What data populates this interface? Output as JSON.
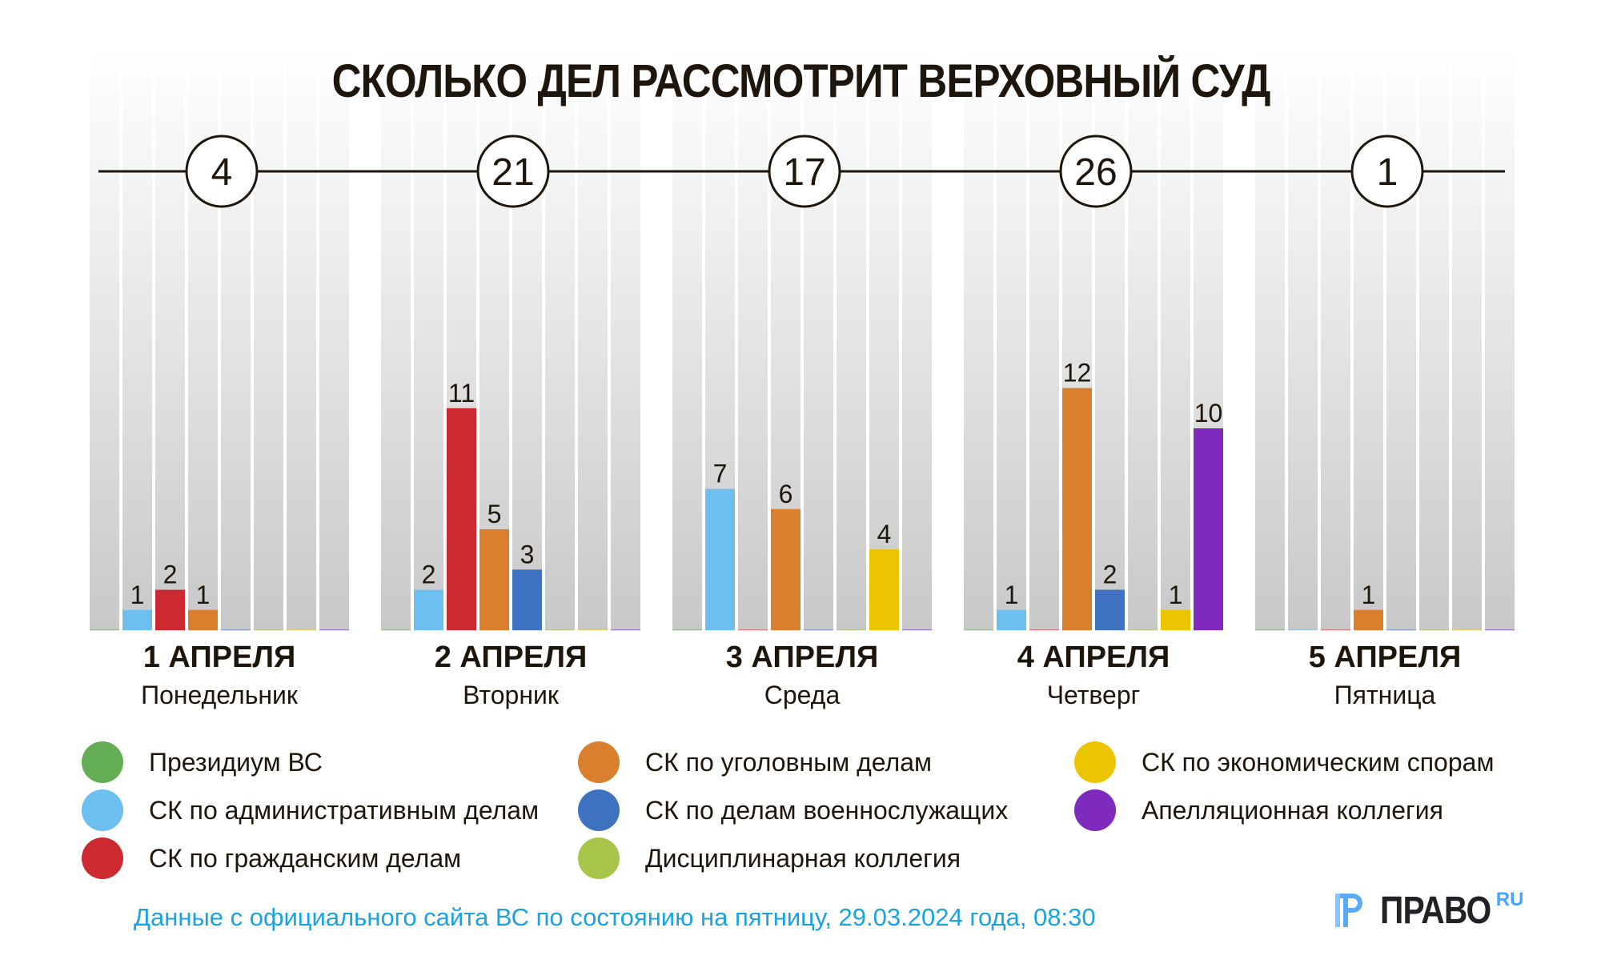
{
  "title": "СКОЛЬКО ДЕЛ РАССМОТРИТ ВЕРХОВНЫЙ СУД",
  "chart_data": {
    "type": "bar",
    "title": "СКОЛЬКО ДЕЛ РАССМОТРИТ ВЕРХОВНЫЙ СУД",
    "xlabel": "",
    "ylabel": "",
    "grid": false,
    "legend_position": "bottom",
    "categories": [
      {
        "date": "1 АПРЕЛЯ",
        "weekday": "Понедельник",
        "total": "4"
      },
      {
        "date": "2 АПРЕЛЯ",
        "weekday": "Вторник",
        "total": "21"
      },
      {
        "date": "3 АПРЕЛЯ",
        "weekday": "Среда",
        "total": "17"
      },
      {
        "date": "4 АПРЕЛЯ",
        "weekday": "Четверг",
        "total": "26"
      },
      {
        "date": "5 АПРЕЛЯ",
        "weekday": "Пятница",
        "total": "1"
      }
    ],
    "series": [
      {
        "name": "Президиум ВС",
        "color": "#63ae54",
        "values": [
          0,
          0,
          0,
          0,
          0
        ]
      },
      {
        "name": "СК по административным делам",
        "color": "#6cbfef",
        "values": [
          1,
          2,
          7,
          1,
          0
        ]
      },
      {
        "name": "СК по гражданским делам",
        "color": "#cc2a30",
        "values": [
          2,
          11,
          0,
          0,
          0
        ]
      },
      {
        "name": "СК по уголовным делам",
        "color": "#d97f2d",
        "values": [
          1,
          5,
          6,
          12,
          1
        ]
      },
      {
        "name": "СК по делам военнослужащих",
        "color": "#3f72c0",
        "values": [
          0,
          3,
          0,
          2,
          0
        ]
      },
      {
        "name": "Дисциплинарная коллегия",
        "color": "#a7c64a",
        "values": [
          0,
          0,
          0,
          0,
          0
        ]
      },
      {
        "name": "СК по экономическим спорам",
        "color": "#ebc600",
        "values": [
          0,
          0,
          4,
          1,
          0
        ]
      },
      {
        "name": "Апелляционная коллегия",
        "color": "#7e2bbd",
        "values": [
          0,
          0,
          0,
          10,
          0
        ]
      }
    ],
    "ylim": [
      0,
      26
    ]
  },
  "legend": [
    {
      "label": "Президиум ВС",
      "color": "#63ae54"
    },
    {
      "label": "СК по административным делам",
      "color": "#6cbfef"
    },
    {
      "label": "СК по гражданским делам",
      "color": "#cc2a30"
    },
    {
      "label": "СК по уголовным делам",
      "color": "#d97f2d"
    },
    {
      "label": "СК по делам военнослужащих",
      "color": "#3f72c0"
    },
    {
      "label": "Дисциплинарная коллегия",
      "color": "#a7c64a"
    },
    {
      "label": "СК по экономическим спорам",
      "color": "#ebc600"
    },
    {
      "label": "Апелляционная коллегия",
      "color": "#7e2bbd"
    }
  ],
  "footer": {
    "note": "Данные с официального сайта ВС по состоянию на пятницу, 29.03.2024 года, 08:30",
    "logo_text": "ПРАВО",
    "logo_suffix": "RU"
  },
  "colors": {
    "text": "#1e160c",
    "footer_note": "#1aa3e0",
    "logo_mark": "#5aaaf5",
    "logo_text": "#222226"
  }
}
